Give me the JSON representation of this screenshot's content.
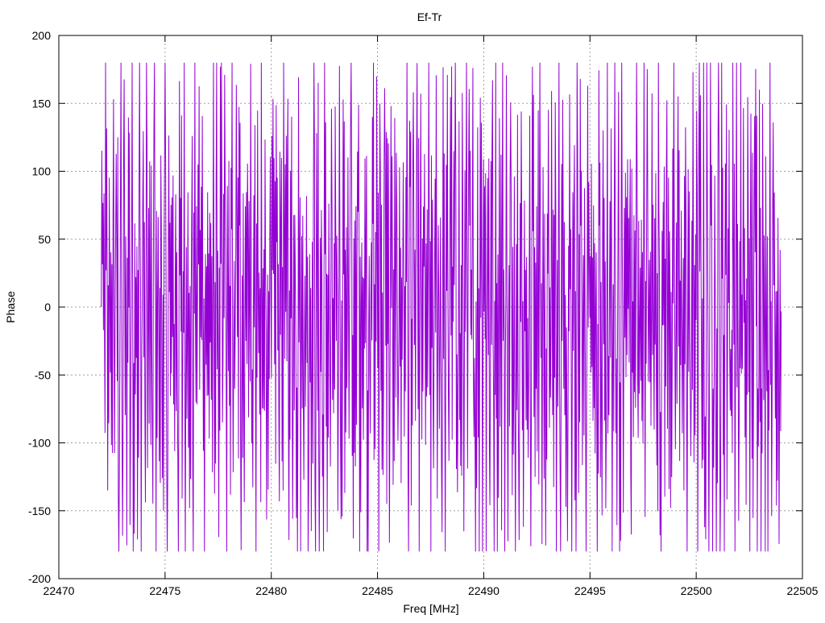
{
  "chart_data": {
    "type": "line",
    "title": "Ef-Tr",
    "xlabel": "Freq [MHz]",
    "ylabel": "Phase",
    "xlim": [
      22470,
      22505
    ],
    "ylim": [
      -200,
      200
    ],
    "xticks": [
      22470,
      22475,
      22480,
      22485,
      22490,
      22495,
      22500,
      22505
    ],
    "yticks": [
      -200,
      -150,
      -100,
      -50,
      0,
      50,
      100,
      150,
      200
    ],
    "x_tick_labels": [
      "22470",
      "22475",
      "22480",
      "22485",
      "22490",
      "22495",
      "22500",
      "22505"
    ],
    "y_tick_labels": [
      "-200",
      "-150",
      "-100",
      "-50",
      "0",
      "50",
      "100",
      "150",
      "200"
    ],
    "grid": true,
    "legend": "none",
    "series": [
      {
        "color": "#9400d3",
        "x_range": [
          22472,
          22504
        ],
        "approx_points": 1280,
        "values_note_range": [
          -180,
          180
        ],
        "x": [
          22472.0,
          22472.5,
          22473.0,
          22473.5,
          22474.0,
          22474.5,
          22475.0,
          22475.5,
          22476.0,
          22476.5,
          22477.0,
          22477.5,
          22478.0,
          22478.5,
          22479.0,
          22479.5,
          22480.0,
          22480.5,
          22481.0,
          22481.5,
          22482.0,
          22482.5,
          22483.0,
          22483.5,
          22484.0,
          22484.5,
          22485.0,
          22485.5,
          22486.0,
          22486.5,
          22487.0,
          22487.5,
          22488.0,
          22488.5,
          22489.0,
          22489.5,
          22490.0,
          22490.5,
          22491.0,
          22491.5,
          22492.0,
          22492.5,
          22493.0,
          22493.5,
          22494.0,
          22494.5,
          22495.0,
          22495.5,
          22496.0,
          22496.5,
          22497.0,
          22497.5,
          22498.0,
          22498.5,
          22499.0,
          22499.5,
          22500.0,
          22500.5,
          22501.0,
          22501.5,
          22502.0,
          22502.5,
          22503.0,
          22503.5,
          22504.0
        ],
        "y": [
          0,
          175,
          -170,
          105,
          -150,
          60,
          -130,
          170,
          -165,
          145,
          -175,
          165,
          -140,
          175,
          -145,
          150,
          -140,
          140,
          -175,
          175,
          -170,
          160,
          -165,
          150,
          -180,
          160,
          -170,
          165,
          -155,
          150,
          -160,
          170,
          -175,
          175,
          -170,
          170,
          -175,
          160,
          -175,
          165,
          -160,
          170,
          -165,
          140,
          -170,
          150,
          -160,
          165,
          -150,
          150,
          -175,
          170,
          -165,
          170,
          -180,
          165,
          -170,
          170,
          -175,
          150,
          -175,
          160,
          -170,
          170,
          20
        ]
      }
    ]
  }
}
